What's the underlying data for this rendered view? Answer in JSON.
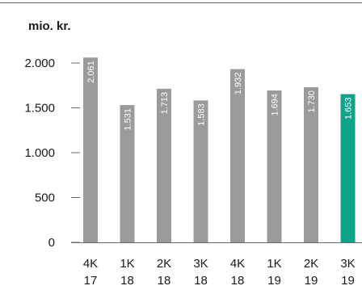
{
  "chart_data": {
    "type": "bar",
    "unit_label": "mio. kr.",
    "categories": [
      [
        "4K",
        "17"
      ],
      [
        "1K",
        "18"
      ],
      [
        "2K",
        "18"
      ],
      [
        "3K",
        "18"
      ],
      [
        "4K",
        "18"
      ],
      [
        "1K",
        "19"
      ],
      [
        "2K",
        "19"
      ],
      [
        "3K",
        "19"
      ]
    ],
    "values": [
      2061,
      1531,
      1713,
      1583,
      1932,
      1694,
      1730,
      1653
    ],
    "data_labels": [
      "2.061",
      "1.531",
      "1.713",
      "1.583",
      "1.932",
      "1.694",
      "1.730",
      "1.653"
    ],
    "y_ticks": [
      0,
      500,
      1000,
      1500,
      2000
    ],
    "y_tick_labels": [
      "0",
      "500",
      "1.000",
      "1.500",
      "2.000"
    ],
    "ylim": [
      0,
      2000
    ],
    "grid": false,
    "colors": {
      "bar": "#9b9b9b",
      "highlight": "#10a389",
      "text": "#1a1a1a",
      "axis": "#6a6a6a"
    },
    "highlight_index": 7
  }
}
